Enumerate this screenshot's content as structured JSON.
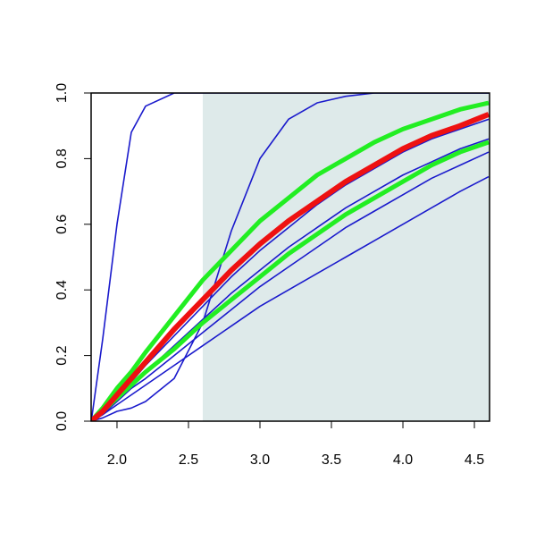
{
  "chart_data": {
    "type": "line",
    "x": [
      1.82,
      1.9,
      2.0,
      2.1,
      2.2,
      2.4,
      2.6,
      2.8,
      3.0,
      3.2,
      3.4,
      3.6,
      3.8,
      4.0,
      4.2,
      4.4,
      4.6
    ],
    "series": [
      {
        "color": "#1a1acc",
        "width": 1.6,
        "values": [
          0,
          0.25,
          0.6,
          0.88,
          0.96,
          1,
          1,
          1,
          1,
          1,
          1,
          1,
          1,
          1,
          1,
          1,
          1
        ]
      },
      {
        "color": "#1a1acc",
        "width": 1.6,
        "values": [
          0,
          0.01,
          0.03,
          0.04,
          0.06,
          0.13,
          0.3,
          0.58,
          0.8,
          0.92,
          0.97,
          0.99,
          1,
          1,
          1,
          1,
          1
        ]
      },
      {
        "color": "#1a1acc",
        "width": 1.6,
        "values": [
          0,
          0.03,
          0.08,
          0.12,
          0.17,
          0.26,
          0.35,
          0.44,
          0.52,
          0.59,
          0.66,
          0.72,
          0.77,
          0.82,
          0.86,
          0.89,
          0.92
        ]
      },
      {
        "color": "#1a1acc",
        "width": 1.6,
        "values": [
          0,
          0.03,
          0.07,
          0.11,
          0.15,
          0.23,
          0.31,
          0.39,
          0.46,
          0.53,
          0.59,
          0.65,
          0.7,
          0.75,
          0.79,
          0.83,
          0.86
        ]
      },
      {
        "color": "#1a1acc",
        "width": 1.6,
        "values": [
          0,
          0.02,
          0.06,
          0.1,
          0.13,
          0.2,
          0.27,
          0.34,
          0.41,
          0.47,
          0.53,
          0.59,
          0.64,
          0.69,
          0.74,
          0.78,
          0.82
        ]
      },
      {
        "color": "#1a1acc",
        "width": 1.6,
        "values": [
          0,
          0.02,
          0.05,
          0.08,
          0.11,
          0.17,
          0.23,
          0.29,
          0.35,
          0.4,
          0.45,
          0.5,
          0.55,
          0.6,
          0.65,
          0.7,
          0.745
        ]
      },
      {
        "color": "#22ee22",
        "width": 5,
        "values": [
          0,
          0.04,
          0.1,
          0.15,
          0.21,
          0.32,
          0.43,
          0.52,
          0.61,
          0.68,
          0.75,
          0.8,
          0.85,
          0.89,
          0.92,
          0.95,
          0.97
        ]
      },
      {
        "color": "#22ee22",
        "width": 5,
        "values": [
          0,
          0.03,
          0.07,
          0.11,
          0.15,
          0.22,
          0.3,
          0.37,
          0.44,
          0.51,
          0.57,
          0.63,
          0.68,
          0.73,
          0.78,
          0.82,
          0.85
        ]
      },
      {
        "color": "#ee1111",
        "width": 6,
        "values": [
          0,
          0.03,
          0.08,
          0.13,
          0.18,
          0.28,
          0.37,
          0.46,
          0.54,
          0.61,
          0.67,
          0.73,
          0.78,
          0.83,
          0.87,
          0.9,
          0.935
        ]
      }
    ],
    "shaded_region": {
      "x": [
        2.6,
        4.606
      ],
      "y": [
        0,
        1
      ],
      "color": "#deeaea"
    },
    "xlim": [
      1.819,
      4.606
    ],
    "ylim": [
      0,
      1
    ],
    "xticks": [
      {
        "value": 2,
        "label": "2.0"
      },
      2.5,
      {
        "value": 3,
        "label": "3.0"
      },
      3.5,
      {
        "value": 4,
        "label": "4.0"
      },
      4.5
    ],
    "yticks": [
      {
        "value": 0,
        "label": "0.0"
      },
      0.2,
      0.4,
      0.6,
      0.8,
      {
        "value": 1,
        "label": "1.0"
      }
    ]
  }
}
